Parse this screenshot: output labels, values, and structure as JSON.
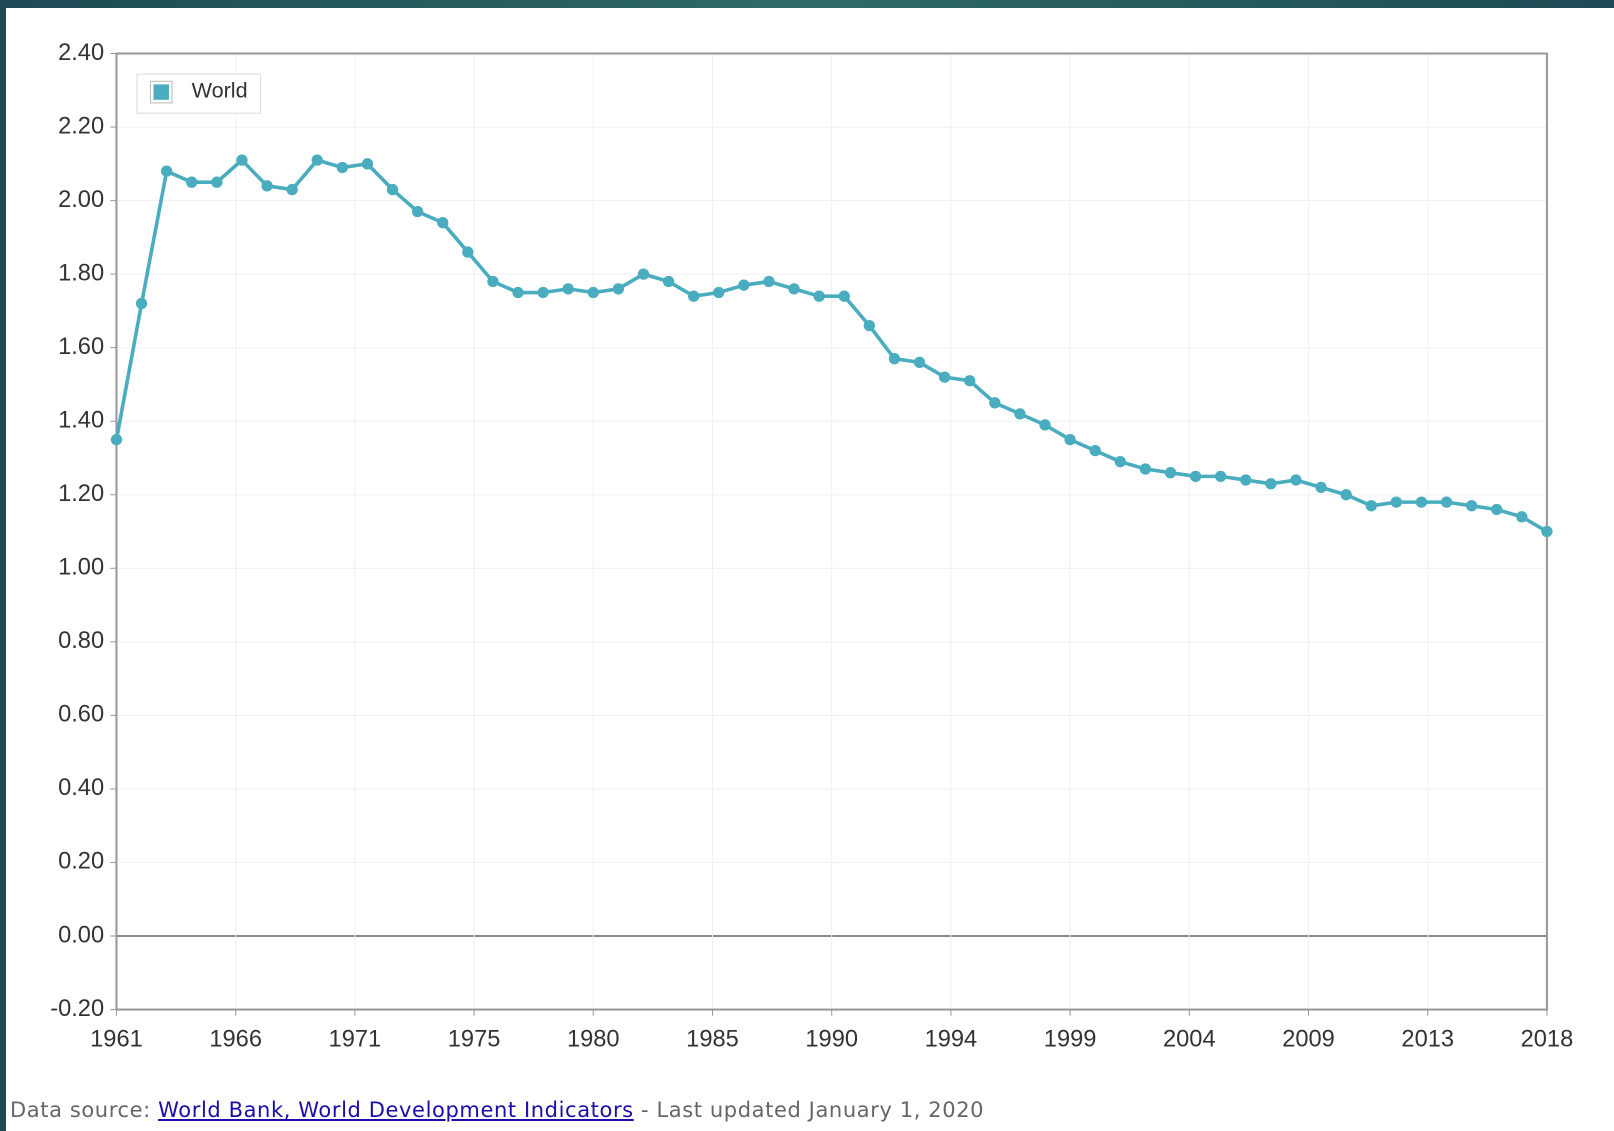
{
  "chart_data": {
    "type": "line",
    "x": [
      1961,
      1962,
      1963,
      1964,
      1965,
      1966,
      1967,
      1968,
      1969,
      1970,
      1971,
      1972,
      1973,
      1974,
      1975,
      1976,
      1977,
      1978,
      1979,
      1980,
      1981,
      1982,
      1983,
      1984,
      1985,
      1986,
      1987,
      1988,
      1989,
      1990,
      1991,
      1992,
      1993,
      1994,
      1995,
      1996,
      1997,
      1998,
      1999,
      2000,
      2001,
      2002,
      2003,
      2004,
      2005,
      2006,
      2007,
      2008,
      2009,
      2010,
      2011,
      2012,
      2013,
      2014,
      2015,
      2016,
      2017,
      2018
    ],
    "series": [
      {
        "name": "World",
        "color": "#4aacbf",
        "values": [
          1.35,
          1.72,
          2.08,
          2.05,
          2.05,
          2.11,
          2.04,
          2.03,
          2.11,
          2.09,
          2.1,
          2.03,
          1.97,
          1.94,
          1.86,
          1.78,
          1.75,
          1.75,
          1.76,
          1.75,
          1.76,
          1.8,
          1.78,
          1.74,
          1.75,
          1.77,
          1.78,
          1.76,
          1.74,
          1.74,
          1.66,
          1.57,
          1.56,
          1.52,
          1.51,
          1.45,
          1.42,
          1.39,
          1.35,
          1.32,
          1.29,
          1.27,
          1.26,
          1.25,
          1.25,
          1.24,
          1.23,
          1.24,
          1.22,
          1.2,
          1.17,
          1.18,
          1.18,
          1.18,
          1.17,
          1.16,
          1.14,
          1.1
        ]
      }
    ],
    "xlim": [
      1961,
      2018
    ],
    "xticks": [
      1961,
      {
        "value": 1965.75,
        "label": "1966"
      },
      {
        "value": 1970.5,
        "label": "1971"
      },
      {
        "value": 1975.25,
        "label": "1975"
      },
      1980,
      {
        "value": 1984.75,
        "label": "1985"
      },
      {
        "value": 1989.5,
        "label": "1990"
      },
      {
        "value": 1994.25,
        "label": "1994"
      },
      1999,
      {
        "value": 2003.75,
        "label": "2004"
      },
      {
        "value": 2008.5,
        "label": "2009"
      },
      {
        "value": 2013.25,
        "label": "2013"
      },
      2018
    ],
    "ylim": [
      -0.2,
      2.4
    ],
    "yticks": [
      {
        "value": -0.2,
        "label": "-0.20"
      },
      {
        "value": 0,
        "label": "0.00"
      },
      {
        "value": 0.2,
        "label": "0.20"
      },
      {
        "value": 0.4,
        "label": "0.40"
      },
      {
        "value": 0.6,
        "label": "0.60"
      },
      {
        "value": 0.8,
        "label": "0.80"
      },
      {
        "value": 1,
        "label": "1.00"
      },
      {
        "value": 1.2,
        "label": "1.20"
      },
      {
        "value": 1.4,
        "label": "1.40"
      },
      {
        "value": 1.6,
        "label": "1.60"
      },
      {
        "value": 1.8,
        "label": "1.80"
      },
      {
        "value": 2,
        "label": "2.00"
      },
      {
        "value": 2.2,
        "label": "2.20"
      },
      {
        "value": 2.4,
        "label": "2.40"
      }
    ],
    "grid": true,
    "legend": "upper left"
  },
  "footer": {
    "prefix": "Data source:",
    "link": "World Bank, World Development Indicators",
    "suffix": "- Last updated January 1, 2020"
  }
}
